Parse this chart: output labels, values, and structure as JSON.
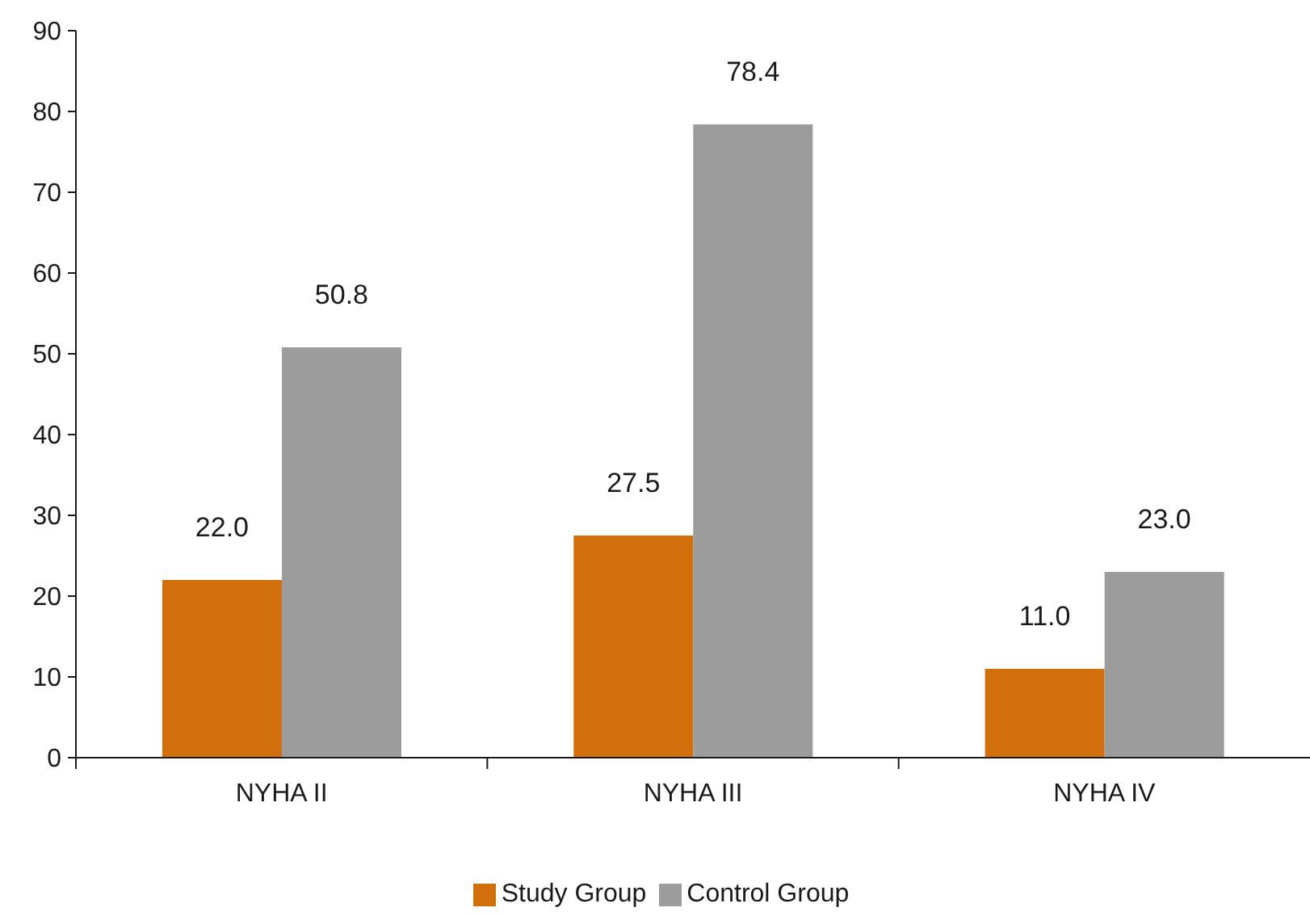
{
  "chart_data": {
    "type": "bar",
    "categories": [
      "NYHA II",
      "NYHA III",
      "NYHA IV"
    ],
    "series": [
      {
        "name": "Study Group",
        "color": "#d06f0c",
        "values": [
          22.0,
          27.5,
          11.0
        ],
        "value_labels": [
          "22.0",
          "27.5",
          "11.0"
        ]
      },
      {
        "name": "Control Group",
        "color": "#9c9c9c",
        "values": [
          50.8,
          78.4,
          23.0
        ],
        "value_labels": [
          "50.8",
          "78.4",
          "23.0"
        ]
      }
    ],
    "ylim": [
      0,
      90
    ],
    "yticks": [
      0,
      10,
      20,
      30,
      40,
      50,
      60,
      70,
      80,
      90
    ],
    "legend": "bottom"
  }
}
